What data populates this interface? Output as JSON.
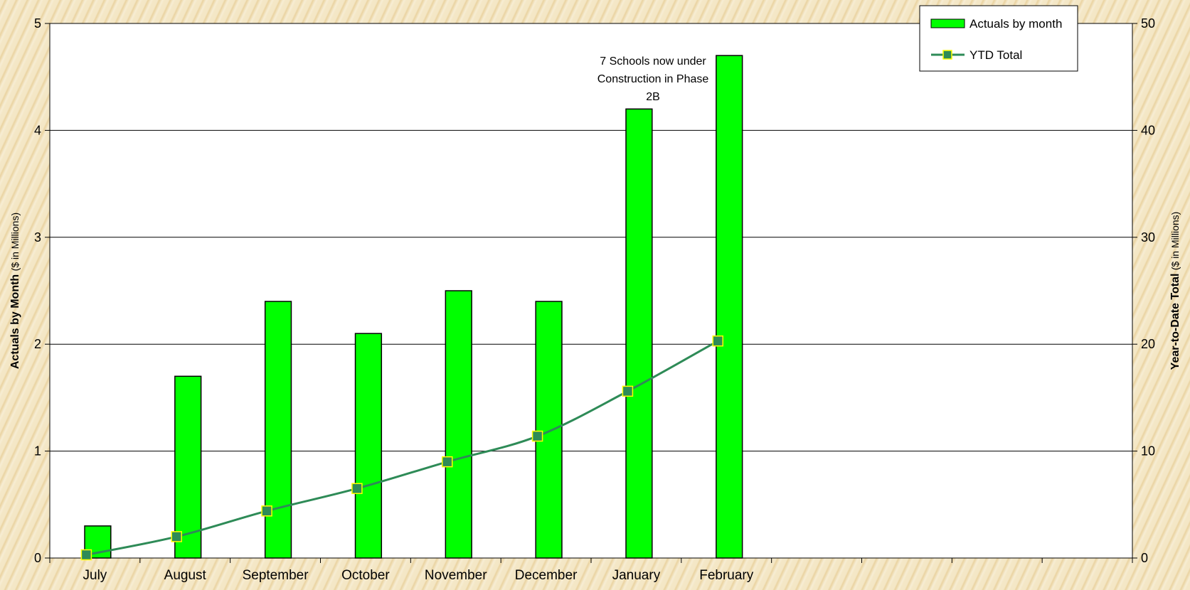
{
  "chart_data": {
    "type": "bar",
    "categories": [
      "July",
      "August",
      "September",
      "October",
      "November",
      "December",
      "January",
      "February",
      "",
      "",
      "",
      ""
    ],
    "series": [
      {
        "name": "Actuals by month",
        "type": "bar",
        "axis": "left",
        "values": [
          0.3,
          1.7,
          2.4,
          2.1,
          2.5,
          2.4,
          4.2,
          4.7,
          null,
          null,
          null,
          null
        ]
      },
      {
        "name": "YTD Total",
        "type": "line",
        "axis": "right",
        "values": [
          0.3,
          2.0,
          4.4,
          6.5,
          9.0,
          11.4,
          15.6,
          20.3,
          null,
          null,
          null,
          null
        ]
      }
    ],
    "y_left": {
      "label_bold": "Actuals by Month",
      "label_unit": "($ in Millions)",
      "range": [
        0,
        5
      ],
      "ticks": [
        "0",
        "1",
        "2",
        "3",
        "4",
        "5"
      ]
    },
    "y_right": {
      "label_bold": "Year-to-Date Total",
      "label_unit": "($ in Millions)",
      "range": [
        0,
        50
      ],
      "ticks": [
        "0",
        "10",
        "20",
        "30",
        "40",
        "50"
      ]
    },
    "annotation": {
      "lines": [
        "7 Schools now under",
        "Construction in Phase",
        "2B"
      ],
      "category": "January"
    },
    "legend": {
      "placement": "top-right"
    },
    "grid": true,
    "colors": {
      "bar": "#00ff00",
      "line": "#2e8b57",
      "marker": "#2e8b57",
      "marker_edge": "#ffff00",
      "plot_bg": "#ffffff"
    }
  }
}
